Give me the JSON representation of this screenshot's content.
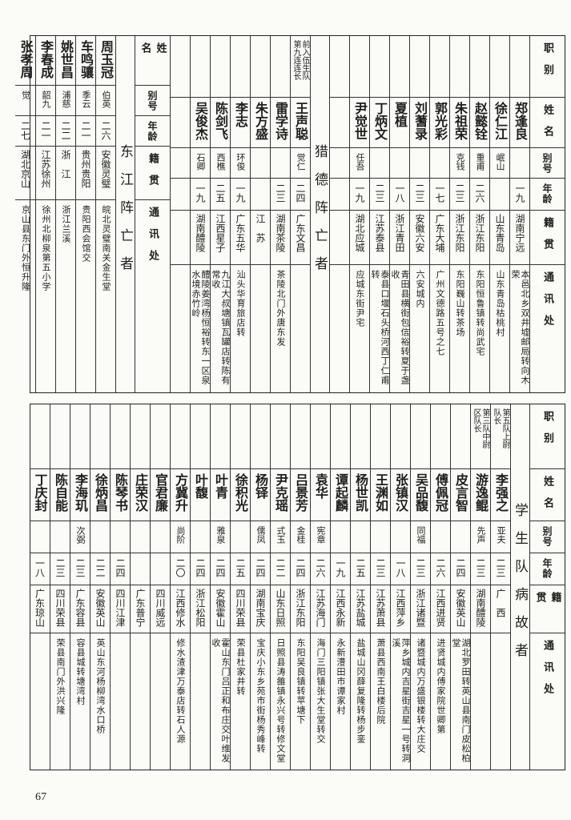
{
  "headers": {
    "title": "职别",
    "name": "姓名",
    "alias": "别号",
    "age": "年龄",
    "origin": "籍贯",
    "address": "通讯处"
  },
  "top": {
    "section_a": {
      "rows": [
        {
          "title": "",
          "name": "郑逢良",
          "alias": "",
          "age": "一九",
          "origin": "湖南宁远",
          "address": "本邑北乡双井墟邮局转向木荣"
        },
        {
          "title": "",
          "name": "徐仁江",
          "alias": "岷山",
          "age": "",
          "origin": "山东青岛",
          "address": "山东青岛枯桃村"
        },
        {
          "title": "",
          "name": "赵懿铨",
          "alias": "重甫",
          "age": "二六",
          "origin": "浙江东阳",
          "address": "东阳恒鲁镇转尚武宅"
        },
        {
          "title": "",
          "name": "朱祖荣",
          "alias": "克钱",
          "age": "二三",
          "origin": "浙江东阳",
          "address": "东阳巍山转茶场"
        },
        {
          "title": "",
          "name": "郭光彩",
          "alias": "",
          "age": "一七",
          "origin": "广东大埔",
          "address": "广州文德路五号之七"
        },
        {
          "title": "",
          "name": "刘蓍录",
          "alias": "",
          "age": "二三",
          "origin": "安徽六安",
          "address": "六安城内"
        },
        {
          "title": "",
          "name": "夏植",
          "alias": "",
          "age": "一八",
          "origin": "浙江青田",
          "address": "青田县横街包信裕转夏于盏收"
        },
        {
          "title": "",
          "name": "丁炳文",
          "alias": "",
          "age": "二三",
          "origin": "江苏泰县",
          "address": "泰县口堰石头桥河西丁仁甫转"
        },
        {
          "title": "",
          "name": "尹觉世",
          "alias": "任吾",
          "age": "一九",
          "origin": "湖北应城",
          "address": "应城东街尹宅"
        }
      ]
    },
    "section_b": {
      "title": "猎德阵亡者",
      "rows": [
        {
          "title": "前入伍生队\n第九连连长",
          "name": "王声聪",
          "alias": "觉仁",
          "age": "二四",
          "origin": "广东文昌",
          "address": ""
        },
        {
          "title": "",
          "name": "雷学诗",
          "alias": "",
          "age": "二三",
          "origin": "湖南茶陵",
          "address": "茶陵北门外唐东发"
        },
        {
          "title": "",
          "name": "朱方盛",
          "alias": "",
          "age": "",
          "origin": "江　苏",
          "address": ""
        },
        {
          "title": "",
          "name": "李志",
          "alias": "环俊",
          "age": "一九",
          "origin": "广东五华",
          "address": "汕头华育旅店转"
        },
        {
          "title": "",
          "name": "陈剑飞",
          "alias": "西樵",
          "age": "二五",
          "origin": "江西星子",
          "address": "九江大叔塘镇瓦罐店转陈有常收"
        },
        {
          "title": "",
          "name": "吴俊杰",
          "alias": "石卿",
          "age": "一九",
          "origin": "湖南醴陵",
          "address": "醴陵姜湾杨恒裕转东一区泉水境赤竹岭"
        }
      ]
    },
    "section_c": {
      "title": "东江阵亡者",
      "rows": [
        {
          "name": "周玉冠",
          "alias": "伯英",
          "age": "二六",
          "origin": "安徽灵璧",
          "address": "皖北灵璧南关金生堂"
        },
        {
          "name": "车鸣骧",
          "alias": "季云",
          "age": "二一",
          "origin": "贵州贵阳",
          "address": "贵阳西会馆交"
        },
        {
          "name": "姚世昌",
          "alias": "浦慈",
          "age": "二二",
          "origin": "浙　江",
          "address": "浙江兰溪"
        },
        {
          "name": "李春成",
          "alias": "韶九",
          "age": "二一",
          "origin": "江苏徐州",
          "address": "徐州北柳泉第五小学"
        },
        {
          "name": "张孝周",
          "alias": "觉",
          "age": "二七",
          "origin": "湖北京山",
          "address": "京山县东门外恒升隆"
        }
      ]
    }
  },
  "bottom": {
    "title": "学生队病故者",
    "rows": [
      {
        "title": "第五队上尉\n队长",
        "name": "李强之",
        "alias": "亚夫",
        "age": "二三",
        "origin": "广　西",
        "address": ""
      },
      {
        "title": "第三队中尉\n区队长",
        "name": "游逸鲲",
        "alias": "先声",
        "age": "二三",
        "origin": "湖南醴陵",
        "address": ""
      },
      {
        "title": "",
        "name": "皮言智",
        "alias": "",
        "age": "二四",
        "origin": "安徽英山",
        "address": "湖北罗田转英山县南门皮松柏堂"
      },
      {
        "title": "",
        "name": "傅佩冠",
        "alias": "",
        "age": "二六",
        "origin": "江西进贤",
        "address": "进贤城内傅家院世卿第"
      },
      {
        "title": "",
        "name": "吴品馥",
        "alias": "同福",
        "age": "二三",
        "origin": "浙江诸暨",
        "address": "诸暨城内万盛银楼转大庄交"
      },
      {
        "title": "",
        "name": "张镇汉",
        "alias": "",
        "age": "一八",
        "origin": "江西萍乡",
        "address": "萍乡城内吉星街吉星一号转洞溪"
      },
      {
        "title": "",
        "name": "王渊如",
        "alias": "",
        "age": "二三",
        "origin": "江苏萧县",
        "address": "萧县西南王白楼后院"
      },
      {
        "title": "",
        "name": "杨世凯",
        "alias": "",
        "age": "二五",
        "origin": "江苏盐城",
        "address": "盐城山冈薛复隆转杨步銮"
      },
      {
        "title": "",
        "name": "谭起麟",
        "alias": "",
        "age": "一九",
        "origin": "江西永新",
        "address": "永新澧田市谭家村"
      },
      {
        "title": "",
        "name": "袁华",
        "alias": "宪章",
        "age": "二六",
        "origin": "江苏海门",
        "address": "海门三阳镇张大生堂转交"
      },
      {
        "title": "",
        "name": "吕景芳",
        "alias": "金桂",
        "age": "二四",
        "origin": "浙江东阳",
        "address": "东阳吴良镇转苹塘下"
      },
      {
        "title": "",
        "name": "尹克瑶",
        "alias": "式玉",
        "age": "二二",
        "origin": "山东日照",
        "address": "日照县涛雒镇永兴号转修文堂"
      },
      {
        "title": "",
        "name": "杨铎",
        "alias": "儒凤",
        "age": "二四",
        "origin": "湖南宝庆",
        "address": "宝庆小东乡苑市街杨秀峰转"
      },
      {
        "title": "",
        "name": "徐积光",
        "alias": "",
        "age": "二五",
        "origin": "四川荣县",
        "address": "荣县杜家井转"
      },
      {
        "title": "",
        "name": "叶青",
        "alias": "雅泉",
        "age": "二四",
        "origin": "安徽霍山",
        "address": "霍山东门吕正和布庄交叶维发收"
      },
      {
        "title": "",
        "name": "叶馥",
        "alias": "",
        "age": "二四",
        "origin": "浙江松阳",
        "address": ""
      },
      {
        "title": "",
        "name": "方冀升",
        "alias": "尚阶",
        "age": "二〇",
        "origin": "江西修水",
        "address": "修水渣津万泰店转石人源"
      },
      {
        "title": "",
        "name": "官君廉",
        "alias": "",
        "age": "",
        "origin": "四川威远",
        "address": ""
      },
      {
        "title": "",
        "name": "庄荣汉",
        "alias": "",
        "age": "",
        "origin": "广东普宁",
        "address": ""
      },
      {
        "title": "",
        "name": "陈琴书",
        "alias": "",
        "age": "二四",
        "origin": "四川江津",
        "address": ""
      },
      {
        "title": "",
        "name": "徐炳昌",
        "alias": "",
        "age": "二二",
        "origin": "安徽英山",
        "address": "英山东河杨柳湾水口桥"
      },
      {
        "title": "",
        "name": "李海玑",
        "alias": "次弼",
        "age": "二三",
        "origin": "广东容县",
        "address": "容县城转塘湾村"
      },
      {
        "title": "",
        "name": "陈自能",
        "alias": "",
        "age": "二三",
        "origin": "四川荣县",
        "address": "荣县南门外洪兴隆"
      },
      {
        "title": "",
        "name": "丁庆封",
        "alias": "",
        "age": "一八",
        "origin": "广东琼山",
        "address": ""
      }
    ]
  },
  "page_number": "67"
}
